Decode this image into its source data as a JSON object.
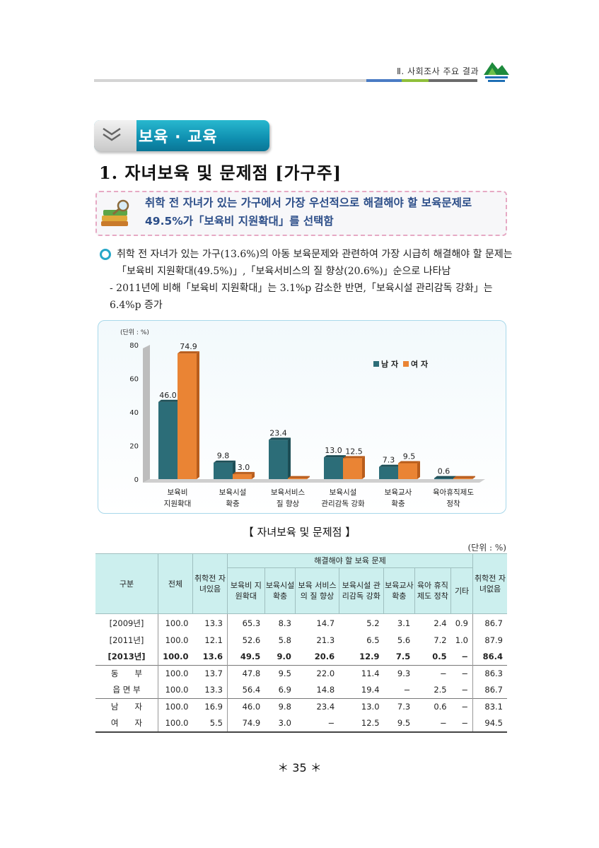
{
  "header": {
    "chapter": "Ⅱ. 사회조사 주요 결과"
  },
  "section": {
    "banner": "보육 · 교육"
  },
  "heading": "1. 자녀보육 및 문제점 [가구주]",
  "summary": {
    "line1": "취학 전 자녀가 있는 가구에서 가장 우선적으로 해결해야 할 보육문제로",
    "line2": "49.5%가「보육비 지원확대」를 선택함"
  },
  "body": {
    "p1": "취학 전 자녀가 있는 가구(13.6%)의 아동 보육문제와 관련하여 가장 시급히 해결해야 할 문제는「보육비 지원확대(49.5%)」,「보육서비스의 질 향상(20.6%)」순으로 나타남",
    "p2": "- 2011년에 비해「보육비 지원확대」는 3.1%p 감소한 반면,「보육시설 관리감독 강화」는 6.4%p 증가"
  },
  "chart_data": {
    "type": "bar",
    "unit_label": "(단위 : %)",
    "categories": [
      [
        "보육비",
        "지원확대"
      ],
      [
        "보육시설",
        "확충"
      ],
      [
        "보육서비스",
        "질 향상"
      ],
      [
        "보육시설",
        "관리감독 강화"
      ],
      [
        "보육교사",
        "확충"
      ],
      [
        "육아휴직제도",
        "정착"
      ]
    ],
    "series": [
      {
        "name": "남 자",
        "color": "#2c6d78",
        "values": [
          46.0,
          9.8,
          23.4,
          13.0,
          7.3,
          0.6
        ]
      },
      {
        "name": "여 자",
        "color": "#ea8434",
        "values": [
          74.9,
          3.0,
          null,
          12.5,
          9.5,
          null
        ]
      }
    ],
    "labels_m": [
      "46.0",
      "9.8",
      "23.4",
      "13.0",
      "7.3",
      "0.6"
    ],
    "labels_f": [
      "74.9",
      "3.0",
      "",
      "12.5",
      "9.5",
      ""
    ],
    "ylim": [
      0,
      80
    ],
    "yticks": [
      "0",
      "20",
      "40",
      "60",
      "80"
    ],
    "legend_position": "top-right"
  },
  "table": {
    "title": "【 자녀보육 및 문제점 】",
    "unit": "(단위 : %)",
    "headers": {
      "category": "구분",
      "total": "전체",
      "has_child": "취학전 자녀있음",
      "group": "해결해야 할 보육 문제",
      "c1": "보육비 지원확대",
      "c2": "보육시설 확충",
      "c3": "보육 서비스의 질 향상",
      "c4": "보육시설 관리감독 강화",
      "c5": "보육교사 확충",
      "c6": "육아 휴직제도 정착",
      "c7": "기타",
      "no_child": "취학전 자녀없음"
    },
    "rows": [
      [
        "[2009년]",
        "100.0",
        "13.3",
        "65.3",
        "8.3",
        "14.7",
        "5.2",
        "3.1",
        "2.4",
        "0.9",
        "86.7"
      ],
      [
        "[2011년]",
        "100.0",
        "12.1",
        "52.6",
        "5.8",
        "21.3",
        "6.5",
        "5.6",
        "7.2",
        "1.0",
        "87.9"
      ],
      [
        "[2013년]",
        "100.0",
        "13.6",
        "49.5",
        "9.0",
        "20.6",
        "12.9",
        "7.5",
        "0.5",
        "−",
        "86.4"
      ],
      [
        "동　　부",
        "100.0",
        "13.7",
        "47.8",
        "9.5",
        "22.0",
        "11.4",
        "9.3",
        "−",
        "−",
        "86.3"
      ],
      [
        "읍 면 부",
        "100.0",
        "13.3",
        "56.4",
        "6.9",
        "14.8",
        "19.4",
        "−",
        "2.5",
        "−",
        "86.7"
      ],
      [
        "남　　자",
        "100.0",
        "16.9",
        "46.0",
        "9.8",
        "23.4",
        "13.0",
        "7.3",
        "0.6",
        "−",
        "83.1"
      ],
      [
        "여　　자",
        "100.0",
        "5.5",
        "74.9",
        "3.0",
        "−",
        "12.5",
        "9.5",
        "−",
        "−",
        "94.5"
      ]
    ]
  },
  "page_number": "＊ 35 ＊"
}
